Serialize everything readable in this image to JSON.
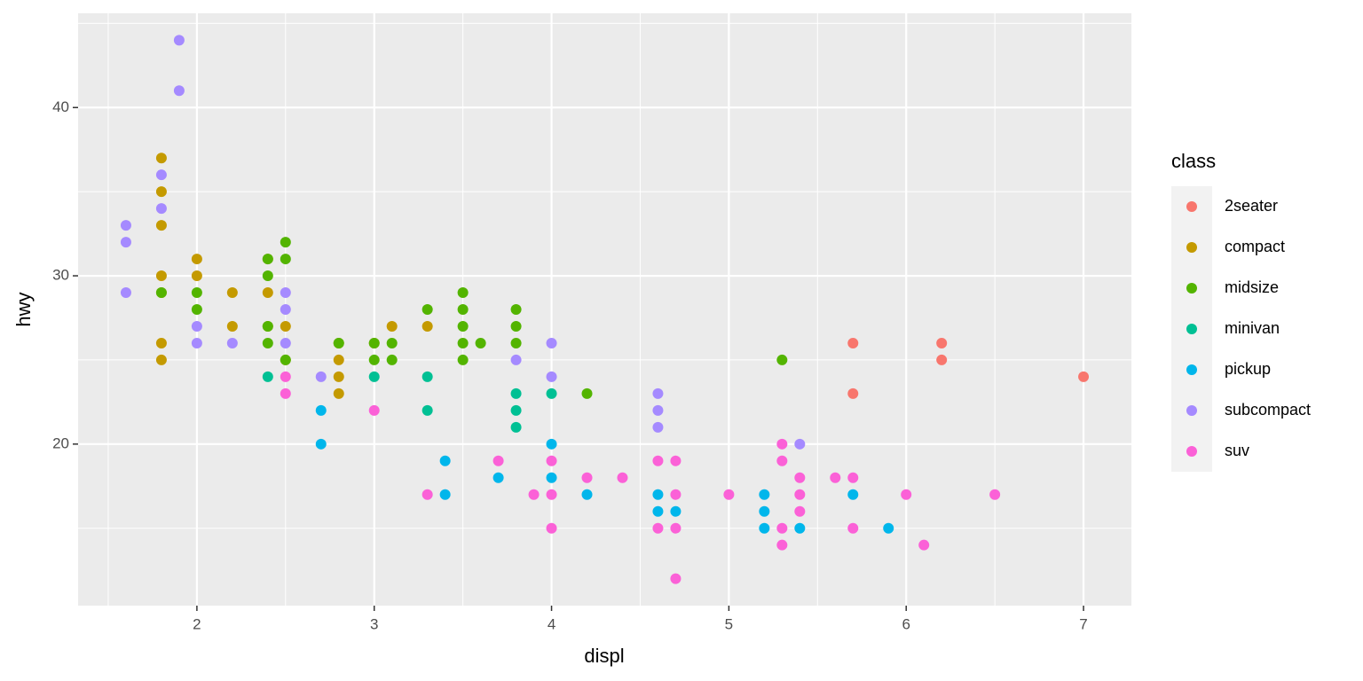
{
  "chart_data": {
    "type": "scatter",
    "x_label": "displ",
    "y_label": "hwy",
    "legend_title": "class",
    "legend_position": "right",
    "grid": true,
    "xlim": [
      1.33,
      7.27
    ],
    "ylim": [
      10.4,
      45.6
    ],
    "xticks": [
      2,
      3,
      4,
      5,
      6,
      7
    ],
    "yticks": [
      20,
      30,
      40
    ],
    "xminor": [
      1.5,
      2.5,
      3.5,
      4.5,
      5.5,
      6.5
    ],
    "yminor": [
      15,
      25,
      35,
      45
    ],
    "series": [
      {
        "name": "2seater",
        "color": "#F8766D",
        "x": [
          5.7,
          5.7,
          6.2,
          6.2,
          7
        ],
        "y": [
          26,
          23,
          26,
          25,
          24
        ]
      },
      {
        "name": "compact",
        "color": "#C49A00",
        "x": [
          1.8,
          1.8,
          1.8,
          1.8,
          1.8,
          1.8,
          1.8,
          2,
          2,
          2.2,
          2.2,
          2.4,
          2.4,
          2.4,
          2.5,
          2.5,
          2.8,
          2.8,
          2.8,
          2.8,
          3,
          3.1,
          3.3
        ],
        "y": [
          37,
          35,
          33,
          30,
          29,
          26,
          25,
          31,
          30,
          29,
          27,
          31,
          29,
          27,
          27,
          25,
          26,
          25,
          24,
          23,
          26,
          27,
          27
        ]
      },
      {
        "name": "midsize",
        "color": "#53B400",
        "x": [
          1.8,
          2,
          2,
          2.4,
          2.4,
          2.4,
          2.4,
          2.5,
          2.5,
          2.5,
          2.8,
          3,
          3,
          3.1,
          3.1,
          3.3,
          3.5,
          3.5,
          3.5,
          3.5,
          3.5,
          3.6,
          3.8,
          3.8,
          3.8,
          4.2,
          5.3
        ],
        "y": [
          29,
          29,
          28,
          31,
          30,
          27,
          26,
          32,
          31,
          25,
          26,
          26,
          25,
          26,
          25,
          28,
          29,
          28,
          27,
          26,
          25,
          26,
          28,
          27,
          26,
          23,
          25
        ]
      },
      {
        "name": "minivan",
        "color": "#00C094",
        "x": [
          2.4,
          3,
          3.3,
          3.3,
          3.8,
          3.8,
          3.8,
          4
        ],
        "y": [
          24,
          24,
          24,
          22,
          23,
          22,
          21,
          23
        ]
      },
      {
        "name": "pickup",
        "color": "#00B6EB",
        "x": [
          2.7,
          2.7,
          3.4,
          3.4,
          3.7,
          4,
          4,
          4.2,
          4.6,
          4.6,
          4.7,
          5.2,
          5.2,
          5.2,
          5.4,
          5.7,
          5.9
        ],
        "y": [
          22,
          20,
          19,
          17,
          18,
          20,
          18,
          17,
          17,
          16,
          16,
          17,
          16,
          15,
          15,
          17,
          15
        ]
      },
      {
        "name": "subcompact",
        "color": "#A58AFF",
        "x": [
          1.6,
          1.6,
          1.6,
          1.8,
          1.8,
          1.9,
          1.9,
          2,
          2,
          2.2,
          2.5,
          2.5,
          2.5,
          2.7,
          3.8,
          4,
          4,
          4.6,
          4.6,
          4.6,
          5.4
        ],
        "y": [
          33,
          32,
          29,
          36,
          34,
          44,
          41,
          27,
          26,
          26,
          29,
          28,
          26,
          24,
          25,
          26,
          24,
          23,
          22,
          21,
          20
        ]
      },
      {
        "name": "suv",
        "color": "#FB61D7",
        "x": [
          2.5,
          2.5,
          3,
          3.3,
          3.7,
          3.9,
          4,
          4,
          4,
          4.2,
          4.4,
          4.6,
          4.6,
          4.7,
          4.7,
          4.7,
          4.7,
          5,
          5.3,
          5.3,
          5.3,
          5.3,
          5.4,
          5.4,
          5.4,
          5.6,
          5.7,
          5.7,
          6,
          6.1,
          6.5
        ],
        "y": [
          24,
          23,
          22,
          17,
          19,
          17,
          19,
          17,
          15,
          18,
          18,
          19,
          15,
          19,
          17,
          15,
          12,
          17,
          20,
          19,
          15,
          14,
          18,
          17,
          16,
          18,
          18,
          15,
          17,
          14,
          17
        ]
      }
    ]
  }
}
